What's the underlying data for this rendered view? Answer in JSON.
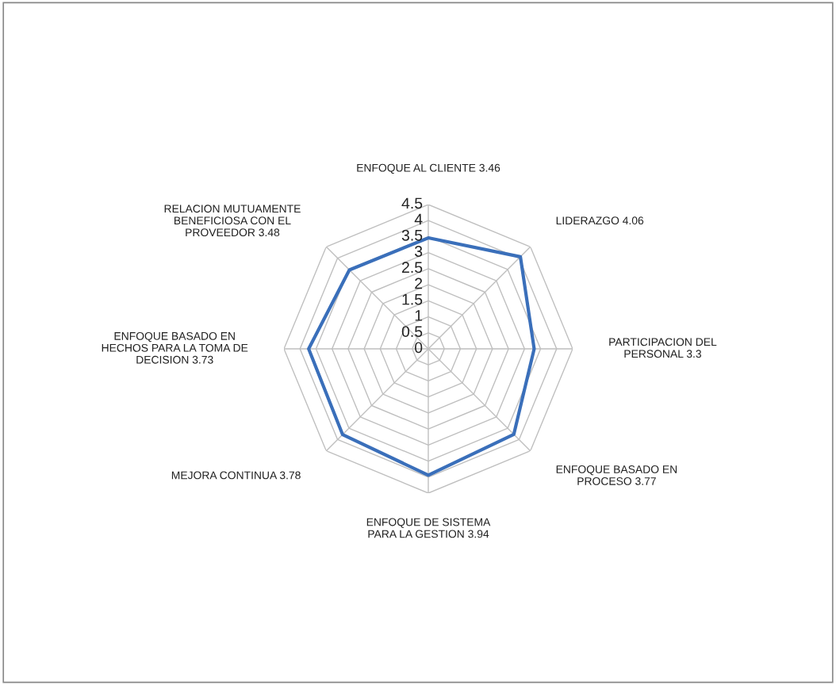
{
  "chart_data": {
    "type": "radar",
    "categories": [
      "ENFOQUE AL CLIENTE 3.46",
      "LIDERAZGO 4.06",
      "PARTICIPACION DEL\nPERSONAL 3.3",
      "ENFOQUE BASADO EN\nPROCESO 3.77",
      "ENFOQUE DE SISTEMA\nPARA LA GESTION 3.94",
      "MEJORA CONTINUA 3.78",
      "ENFOQUE BASADO EN\nHECHOS PARA LA TOMA DE\nDECISION 3.73",
      "RELACION MUTUAMENTE\nBENEFICIOSA CON EL\nPROVEEDOR 3.48"
    ],
    "series": [
      {
        "color": "#3a6fba",
        "values": [
          3.46,
          4.06,
          3.3,
          3.77,
          3.94,
          3.78,
          3.73,
          3.48
        ]
      }
    ],
    "ylim": [
      0,
      4.5
    ],
    "yticks": [
      0,
      0.5,
      1,
      1.5,
      2,
      2.5,
      3,
      3.5,
      4,
      4.5
    ],
    "grid": true,
    "marker": "none",
    "line_style": "solid"
  }
}
